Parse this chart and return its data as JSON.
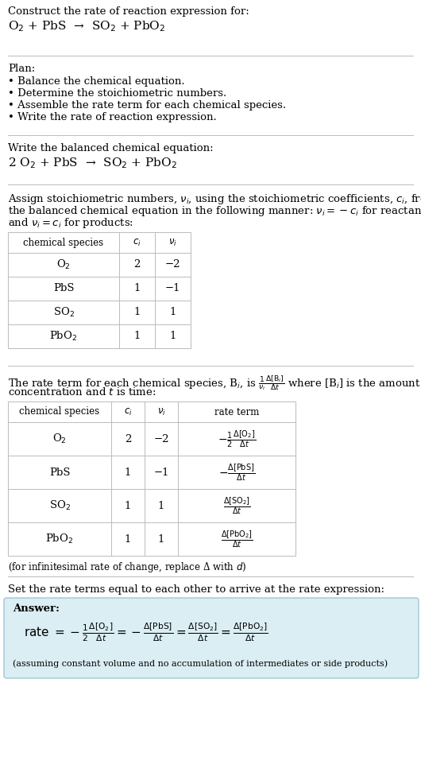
{
  "bg_color": "#ffffff",
  "text_color": "#000000",
  "light_blue_bg": "#daeef3",
  "border_color": "#bbbbbb",
  "answer_border": "#a0c8d8",
  "sections": {
    "s1_line1": "Construct the rate of reaction expression for:",
    "s1_line2": "O$_2$ + PbS  →  SO$_2$ + PbO$_2$",
    "s2_header": "Plan:",
    "s2_bullets": [
      "• Balance the chemical equation.",
      "• Determine the stoichiometric numbers.",
      "• Assemble the rate term for each chemical species.",
      "• Write the rate of reaction expression."
    ],
    "s3_header": "Write the balanced chemical equation:",
    "s3_eq": "2 O$_2$ + PbS  →  SO$_2$ + PbO$_2$",
    "s4_intro_L1": "Assign stoichiometric numbers, $\\nu_i$, using the stoichiometric coefficients, $c_i$, from",
    "s4_intro_L2": "the balanced chemical equation in the following manner: $\\nu_i = -c_i$ for reactants",
    "s4_intro_L3": "and $\\nu_i = c_i$ for products:",
    "s4_headers": [
      "chemical species",
      "$c_i$",
      "$\\nu_i$"
    ],
    "s4_rows": [
      [
        "O$_2$",
        "2",
        "−2"
      ],
      [
        "PbS",
        "1",
        "−1"
      ],
      [
        "SO$_2$",
        "1",
        "1"
      ],
      [
        "PbO$_2$",
        "1",
        "1"
      ]
    ],
    "s5_intro_L1": "The rate term for each chemical species, B$_i$, is $\\frac{1}{\\nu_i}\\frac{\\Delta[\\mathrm{B}_i]}{\\Delta t}$ where [B$_i$] is the amount",
    "s5_intro_L2": "concentration and $t$ is time:",
    "s5_headers": [
      "chemical species",
      "$c_i$",
      "$\\nu_i$",
      "rate term"
    ],
    "s5_rows": [
      [
        "O$_2$",
        "2",
        "−2"
      ],
      [
        "PbS",
        "1",
        "−1"
      ],
      [
        "SO$_2$",
        "1",
        "1"
      ],
      [
        "PbO$_2$",
        "1",
        "1"
      ]
    ],
    "s5_rate_terms": [
      "$-\\frac{1}{2}\\frac{\\Delta[\\mathrm{O_2}]}{\\Delta t}$",
      "$-\\frac{\\Delta[\\mathrm{PbS}]}{\\Delta t}$",
      "$\\frac{\\Delta[\\mathrm{SO_2}]}{\\Delta t}$",
      "$\\frac{\\Delta[\\mathrm{PbO_2}]}{\\Delta t}$"
    ],
    "s5_footnote": "(for infinitesimal rate of change, replace Δ with $d$)",
    "s6_header": "Set the rate terms equal to each other to arrive at the rate expression:",
    "s6_answer_label": "Answer:",
    "s6_rate_eq": "rate $= -\\frac{1}{2}\\frac{\\Delta[\\mathrm{O_2}]}{\\Delta t} = -\\frac{\\Delta[\\mathrm{PbS}]}{\\Delta t} = \\frac{\\Delta[\\mathrm{SO_2}]}{\\Delta t} = \\frac{\\Delta[\\mathrm{PbO_2}]}{\\Delta t}$",
    "s6_footnote": "(assuming constant volume and no accumulation of intermediates or side products)"
  }
}
